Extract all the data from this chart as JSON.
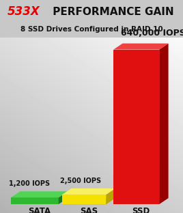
{
  "title_part1": "533X",
  "title_part2": " PERFORMANCE GAIN",
  "subtitle": "8 SSD Drives Configured in RAID 10",
  "categories": [
    "SATA",
    "SAS",
    "SSD"
  ],
  "values": [
    1200,
    2500,
    640000
  ],
  "labels": [
    "1,200 IOPS",
    "2,500 IOPS",
    "640,000 IOPS"
  ],
  "bar_face_colors": [
    "#2db830",
    "#f5e000",
    "#e01010"
  ],
  "bar_side_colors": [
    "#1a7a1e",
    "#b8a500",
    "#990000"
  ],
  "bar_top_colors": [
    "#50d454",
    "#f8f060",
    "#f04040"
  ],
  "title_color_accent": "#e80000",
  "title_color_main": "#111111",
  "subtitle_color": "#111111",
  "label_color": "#111111",
  "cat_label_color": "#111111",
  "header_bg": "#c8c8c8",
  "chart_bg_top": "#c0c0c0",
  "chart_bg_bottom": "#e8e8e8",
  "figsize": [
    2.68,
    3.12
  ],
  "dpi": 100
}
